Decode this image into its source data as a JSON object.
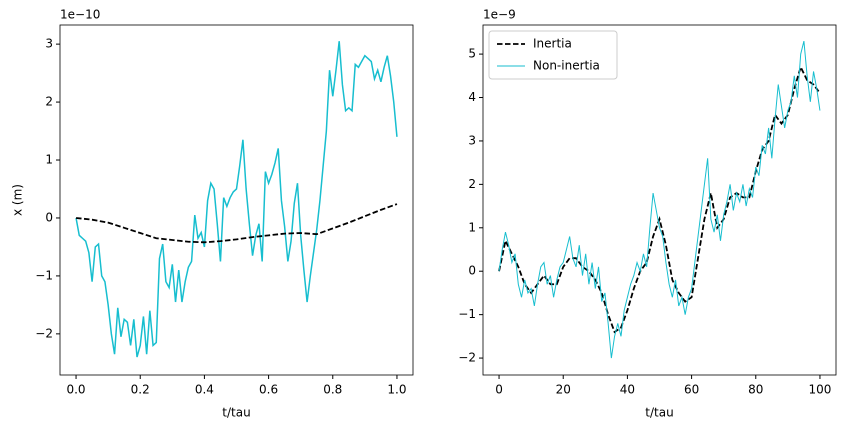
{
  "chart_data": [
    {
      "type": "line",
      "xlabel": "t/tau",
      "ylabel": "x (m)",
      "offset_text": "1e−10",
      "xlim": [
        -0.05,
        1.05
      ],
      "ylim": [
        -2.71,
        3.33
      ],
      "xticks": [
        {
          "value": 0,
          "label": "0.0"
        },
        0.2,
        0.4,
        0.6,
        0.8,
        {
          "value": 1,
          "label": "1.0"
        }
      ],
      "yticks": [
        {
          "value": -2,
          "label": "−2"
        },
        {
          "value": -1,
          "label": "−1"
        },
        0,
        1,
        2,
        3
      ],
      "x": [
        0,
        0.01,
        0.02,
        0.03,
        0.04,
        0.05,
        0.06,
        0.07,
        0.08,
        0.09,
        0.1,
        0.11,
        0.12,
        0.13,
        0.14,
        0.15,
        0.16,
        0.17,
        0.18,
        0.19,
        0.2,
        0.21,
        0.22,
        0.23,
        0.24,
        0.25,
        0.26,
        0.27,
        0.28,
        0.29,
        0.3,
        0.31,
        0.32,
        0.33,
        0.34,
        0.35,
        0.36,
        0.37,
        0.38,
        0.39,
        0.4,
        0.41,
        0.42,
        0.43,
        0.44,
        0.45,
        0.46,
        0.47,
        0.48,
        0.49,
        0.5,
        0.51,
        0.52,
        0.53,
        0.54,
        0.55,
        0.56,
        0.57,
        0.58,
        0.59,
        0.6,
        0.61,
        0.62,
        0.63,
        0.64,
        0.65,
        0.66,
        0.67,
        0.68,
        0.69,
        0.7,
        0.71,
        0.72,
        0.73,
        0.74,
        0.75,
        0.76,
        0.77,
        0.78,
        0.79,
        0.8,
        0.81,
        0.82,
        0.83,
        0.84,
        0.85,
        0.86,
        0.87,
        0.88,
        0.89,
        0.9,
        0.91,
        0.92,
        0.93,
        0.94,
        0.95,
        0.96,
        0.97,
        0.98,
        0.99,
        1
      ],
      "series": [
        {
          "color": "#17becf",
          "linestyle": "solid",
          "linewidth": 1.5,
          "values": [
            0,
            -0.3,
            -0.35,
            -0.4,
            -0.6,
            -1.1,
            -0.5,
            -0.45,
            -1.0,
            -1.1,
            -1.5,
            -2.0,
            -2.35,
            -1.55,
            -2.05,
            -1.75,
            -1.8,
            -2.2,
            -1.75,
            -2.4,
            -2.2,
            -1.7,
            -2.35,
            -1.6,
            -2.2,
            -2.15,
            -0.7,
            -0.45,
            -1.1,
            -1.2,
            -0.8,
            -1.45,
            -0.9,
            -1.45,
            -1.1,
            -0.85,
            -0.75,
            0.05,
            -0.35,
            -0.25,
            -0.5,
            0.3,
            0.6,
            0.5,
            -0.1,
            -0.75,
            0.35,
            0.2,
            0.35,
            0.45,
            0.5,
            0.9,
            1.35,
            0.5,
            -0.1,
            -0.65,
            -0.3,
            -0.1,
            -0.75,
            0.8,
            0.6,
            0.75,
            0.95,
            1.2,
            0.3,
            -0.15,
            -0.75,
            -0.4,
            0.25,
            0.6,
            -0.3,
            -0.9,
            -1.45,
            -1.0,
            -0.6,
            -0.2,
            0.3,
            0.9,
            1.5,
            2.55,
            2.1,
            2.55,
            3.05,
            2.3,
            1.85,
            1.9,
            1.85,
            2.65,
            2.6,
            2.7,
            2.8,
            2.75,
            2.7,
            2.4,
            2.55,
            2.35,
            2.6,
            2.8,
            2.45,
            2.0,
            1.4
          ]
        },
        {
          "color": "#000000",
          "linestyle": "dashed",
          "linewidth": 1.8,
          "x": [
            0,
            0.05,
            0.1,
            0.15,
            0.2,
            0.25,
            0.3,
            0.35,
            0.4,
            0.45,
            0.5,
            0.55,
            0.6,
            0.65,
            0.7,
            0.75,
            0.8,
            0.85,
            0.9,
            0.95,
            1
          ],
          "values": [
            0,
            -0.03,
            -0.08,
            -0.17,
            -0.26,
            -0.35,
            -0.38,
            -0.41,
            -0.42,
            -0.4,
            -0.37,
            -0.33,
            -0.3,
            -0.27,
            -0.26,
            -0.28,
            -0.18,
            -0.08,
            0.03,
            0.14,
            0.24
          ]
        }
      ]
    },
    {
      "type": "line",
      "xlabel": "t/tau",
      "offset_text": "1e−9",
      "legend": "upper left",
      "xlim": [
        -5,
        105
      ],
      "ylim": [
        -2.39,
        5.67
      ],
      "xticks": [
        0,
        20,
        40,
        60,
        80,
        100
      ],
      "yticks": [
        {
          "value": -2,
          "label": "−2"
        },
        {
          "value": -1,
          "label": "−1"
        },
        0,
        1,
        2,
        3,
        4,
        5
      ],
      "x": [
        0,
        1,
        2,
        3,
        4,
        5,
        6,
        7,
        8,
        9,
        10,
        11,
        12,
        13,
        14,
        15,
        16,
        17,
        18,
        19,
        20,
        21,
        22,
        23,
        24,
        25,
        26,
        27,
        28,
        29,
        30,
        31,
        32,
        33,
        34,
        35,
        36,
        37,
        38,
        39,
        40,
        41,
        42,
        43,
        44,
        45,
        46,
        47,
        48,
        49,
        50,
        51,
        52,
        53,
        54,
        55,
        56,
        57,
        58,
        59,
        60,
        61,
        62,
        63,
        64,
        65,
        66,
        67,
        68,
        69,
        70,
        71,
        72,
        73,
        74,
        75,
        76,
        77,
        78,
        79,
        80,
        81,
        82,
        83,
        84,
        85,
        86,
        87,
        88,
        89,
        90,
        91,
        92,
        93,
        94,
        95,
        96,
        97,
        98,
        99,
        100
      ],
      "series": [
        {
          "name": "Inertia",
          "color": "#000000",
          "linestyle": "dashed",
          "linewidth": 1.8,
          "x": [
            0,
            2,
            4,
            6,
            8,
            10,
            12,
            14,
            16,
            18,
            20,
            22,
            24,
            26,
            28,
            30,
            32,
            34,
            36,
            38,
            40,
            42,
            44,
            46,
            48,
            50,
            52,
            54,
            56,
            58,
            60,
            62,
            64,
            66,
            68,
            70,
            72,
            74,
            76,
            78,
            80,
            82,
            84,
            86,
            88,
            90,
            92,
            94,
            96,
            98,
            100
          ],
          "values": [
            0,
            0.7,
            0.4,
            0.1,
            -0.3,
            -0.5,
            -0.3,
            -0.1,
            -0.3,
            -0.3,
            0.1,
            0.3,
            0.3,
            0.1,
            0.0,
            -0.2,
            -0.5,
            -1.0,
            -1.4,
            -1.3,
            -0.9,
            -0.4,
            0.0,
            0.2,
            0.8,
            1.2,
            0.6,
            -0.2,
            -0.5,
            -0.7,
            -0.6,
            0.3,
            1.2,
            1.8,
            1.0,
            1.2,
            1.7,
            1.8,
            1.7,
            1.7,
            2.3,
            2.8,
            3.0,
            3.6,
            3.4,
            3.6,
            4.2,
            4.7,
            4.4,
            4.3,
            4.1
          ]
        },
        {
          "name": "Non-inertia",
          "color": "#17becf",
          "linestyle": "solid",
          "linewidth": 1,
          "values": [
            0,
            0.5,
            0.9,
            0.6,
            0.2,
            0.4,
            -0.3,
            -0.6,
            -0.2,
            -0.5,
            -0.4,
            -0.8,
            -0.3,
            0.1,
            0.2,
            -0.3,
            -0.1,
            -0.6,
            -0.2,
            0.1,
            0.2,
            0.5,
            0.8,
            0.3,
            0.1,
            0.6,
            -0.1,
            0.4,
            -0.3,
            0.2,
            -0.4,
            0.1,
            -0.7,
            -0.5,
            -1.2,
            -2.0,
            -1.5,
            -1.2,
            -1.5,
            -0.9,
            -0.6,
            -0.3,
            -0.1,
            0.2,
            0.0,
            0.4,
            0.1,
            1.0,
            1.8,
            1.4,
            1.0,
            0.8,
            0.2,
            -0.3,
            -0.6,
            -0.2,
            -0.8,
            -0.6,
            -1.0,
            -0.6,
            -0.4,
            0.2,
            0.8,
            1.4,
            2.0,
            2.6,
            1.2,
            0.9,
            1.3,
            0.7,
            1.3,
            1.6,
            2.0,
            1.4,
            1.8,
            1.6,
            2.0,
            1.5,
            1.9,
            1.7,
            2.4,
            2.2,
            2.9,
            2.7,
            3.3,
            2.6,
            3.5,
            4.3,
            3.8,
            3.3,
            3.7,
            3.9,
            4.5,
            4.0,
            5.0,
            5.3,
            4.5,
            3.9,
            4.6,
            4.2,
            3.7
          ]
        }
      ]
    }
  ]
}
